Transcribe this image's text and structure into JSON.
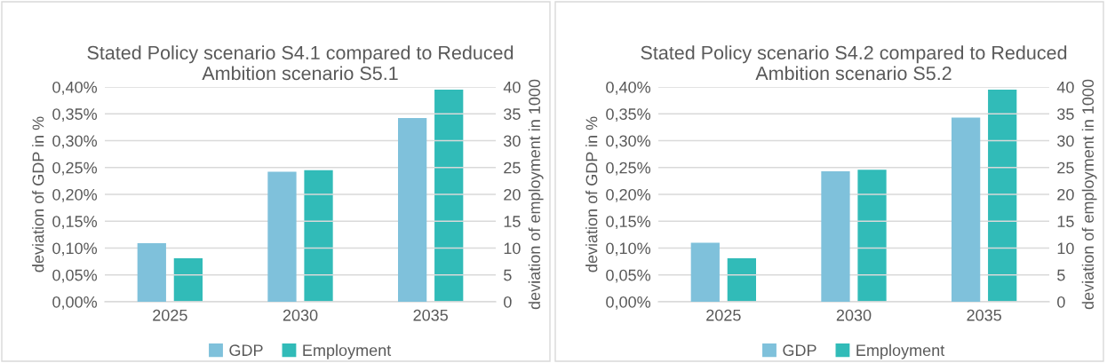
{
  "chart_data": [
    {
      "type": "bar",
      "title": "Stated Policy scenario S4.1 compared to Reduced\nAmbition scenario S5.1",
      "ylabel": "deviation of GDP in %",
      "y2label": "deviation of employment in 1000",
      "categories": [
        "2025",
        "2030",
        "2035"
      ],
      "series": [
        {
          "name": "GDP",
          "color": "#7fc1db",
          "values": [
            0.109,
            0.242,
            0.342
          ]
        },
        {
          "name": "Employment",
          "color": "#31bbb8",
          "axis": "y2",
          "values": [
            8.1,
            24.5,
            39.5
          ]
        }
      ],
      "ylim": [
        0,
        0.4
      ],
      "yticks": [
        {
          "value": 0,
          "label": "0,00%"
        },
        {
          "value": 0.05,
          "label": "0,05%"
        },
        {
          "value": 0.1,
          "label": "0,10%"
        },
        {
          "value": 0.15,
          "label": "0,15%"
        },
        {
          "value": 0.2,
          "label": "0,20%"
        },
        {
          "value": 0.25,
          "label": "0,25%"
        },
        {
          "value": 0.3,
          "label": "0,30%"
        },
        {
          "value": 0.35,
          "label": "0,35%"
        },
        {
          "value": 0.4,
          "label": "0,40%"
        }
      ],
      "y2lim": [
        0,
        40
      ],
      "y2ticks": [
        0,
        5,
        10,
        15,
        20,
        25,
        30,
        35,
        40
      ],
      "grid": "y",
      "legend": "bottom"
    },
    {
      "type": "bar",
      "title": "Stated Policy scenario S4.2 compared to Reduced\nAmbition scenario S5.2",
      "ylabel": "deviation of GDP in %",
      "y2label": "deviation of employment in 1000",
      "categories": [
        "2025",
        "2030",
        "2035"
      ],
      "series": [
        {
          "name": "GDP",
          "color": "#7fc1db",
          "values": [
            0.11,
            0.243,
            0.343
          ]
        },
        {
          "name": "Employment",
          "color": "#31bbb8",
          "axis": "y2",
          "values": [
            8.1,
            24.6,
            39.5
          ]
        }
      ],
      "ylim": [
        0,
        0.4
      ],
      "yticks": [
        {
          "value": 0,
          "label": "0,00%"
        },
        {
          "value": 0.05,
          "label": "0,05%"
        },
        {
          "value": 0.1,
          "label": "0,10%"
        },
        {
          "value": 0.15,
          "label": "0,15%"
        },
        {
          "value": 0.2,
          "label": "0,20%"
        },
        {
          "value": 0.25,
          "label": "0,25%"
        },
        {
          "value": 0.3,
          "label": "0,30%"
        },
        {
          "value": 0.35,
          "label": "0,35%"
        },
        {
          "value": 0.4,
          "label": "0,40%"
        }
      ],
      "y2lim": [
        0,
        40
      ],
      "y2ticks": [
        0,
        5,
        10,
        15,
        20,
        25,
        30,
        35,
        40
      ],
      "grid": "y",
      "legend": "bottom"
    }
  ]
}
